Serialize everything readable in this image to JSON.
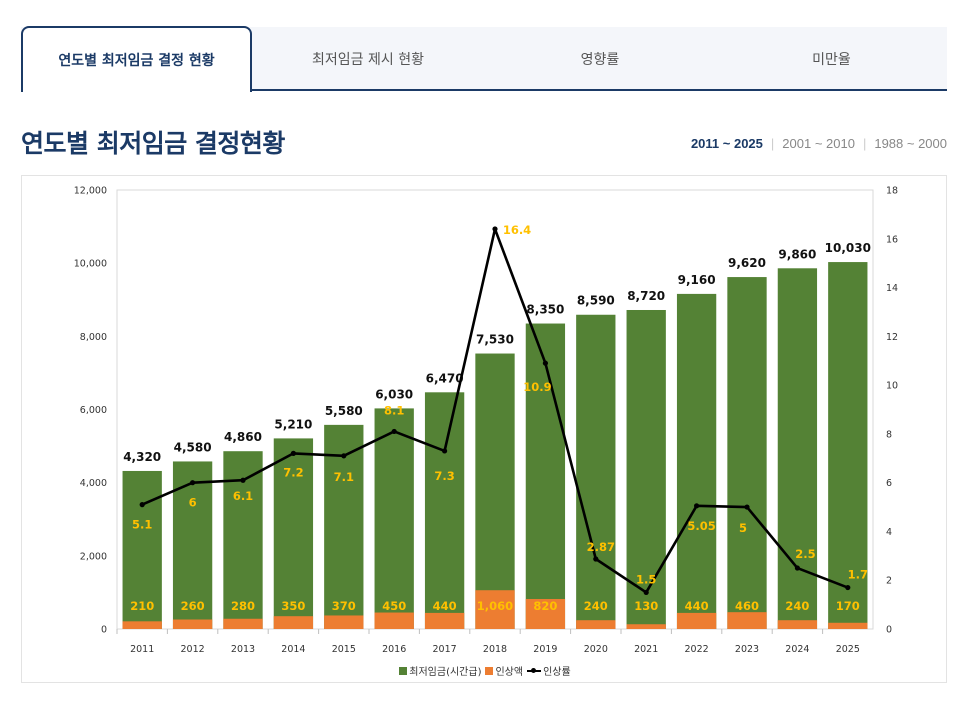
{
  "tabs": [
    {
      "label": "연도별 최저임금 결정 현황",
      "active": true
    },
    {
      "label": "최저임금 제시 현황",
      "active": false
    },
    {
      "label": "영향률",
      "active": false
    },
    {
      "label": "미만율",
      "active": false
    }
  ],
  "page_title": "연도별 최저임금 결정현황",
  "ranges": [
    {
      "label": "2011 ~ 2025",
      "active": true
    },
    {
      "label": "2001 ~ 2010",
      "active": false
    },
    {
      "label": "1988 ~ 2000",
      "active": false
    }
  ],
  "colors": {
    "wage": "#548235",
    "increase": "#ED7D31",
    "rate_line": "#000000",
    "label_gold": "#FFC000",
    "brand": "#1b3a66"
  },
  "chart_data": {
    "type": "bar",
    "categories": [
      "2011",
      "2012",
      "2013",
      "2014",
      "2015",
      "2016",
      "2017",
      "2018",
      "2019",
      "2020",
      "2021",
      "2022",
      "2023",
      "2024",
      "2025"
    ],
    "series": [
      {
        "name": "최저임금(시간급)",
        "type": "bar",
        "axis": "left",
        "values": [
          4320,
          4580,
          4860,
          5210,
          5580,
          6030,
          6470,
          7530,
          8350,
          8590,
          8720,
          9160,
          9620,
          9860,
          10030
        ],
        "labels": [
          "4,320",
          "4,580",
          "4,860",
          "5,210",
          "5,580",
          "6,030",
          "6,470",
          "7,530",
          "8,350",
          "8,590",
          "8,720",
          "9,160",
          "9,620",
          "9,860",
          "10,030"
        ]
      },
      {
        "name": "인상액",
        "type": "bar",
        "axis": "left",
        "values": [
          210,
          260,
          280,
          350,
          370,
          450,
          440,
          1060,
          820,
          240,
          130,
          440,
          460,
          240,
          170
        ],
        "labels": [
          "210",
          "260",
          "280",
          "350",
          "370",
          "450",
          "440",
          "1,060",
          "820",
          "240",
          "130",
          "440",
          "460",
          "240",
          "170"
        ]
      },
      {
        "name": "인상률",
        "type": "line",
        "axis": "right",
        "values": [
          5.1,
          6,
          6.1,
          7.2,
          7.1,
          8.1,
          7.3,
          16.4,
          10.9,
          2.87,
          1.5,
          5.05,
          5,
          2.5,
          1.7
        ],
        "labels": [
          "5.1",
          "6",
          "6.1",
          "7.2",
          "7.1",
          "8.1",
          "7.3",
          "16.4",
          "10.9",
          "2.87",
          "1.5",
          "5.05",
          "5",
          "2.5",
          "1.7"
        ]
      }
    ],
    "y_left": {
      "min": 0,
      "max": 12000,
      "ticks": [
        "0",
        "2,000",
        "4,000",
        "6,000",
        "8,000",
        "10,000",
        "12,000"
      ]
    },
    "y_right": {
      "min": 0,
      "max": 18,
      "ticks": [
        "0",
        "2",
        "4",
        "6",
        "8",
        "10",
        "12",
        "14",
        "16",
        "18"
      ]
    },
    "xlabel": "",
    "ylabel": "",
    "legend_position": "bottom",
    "grid": false
  }
}
